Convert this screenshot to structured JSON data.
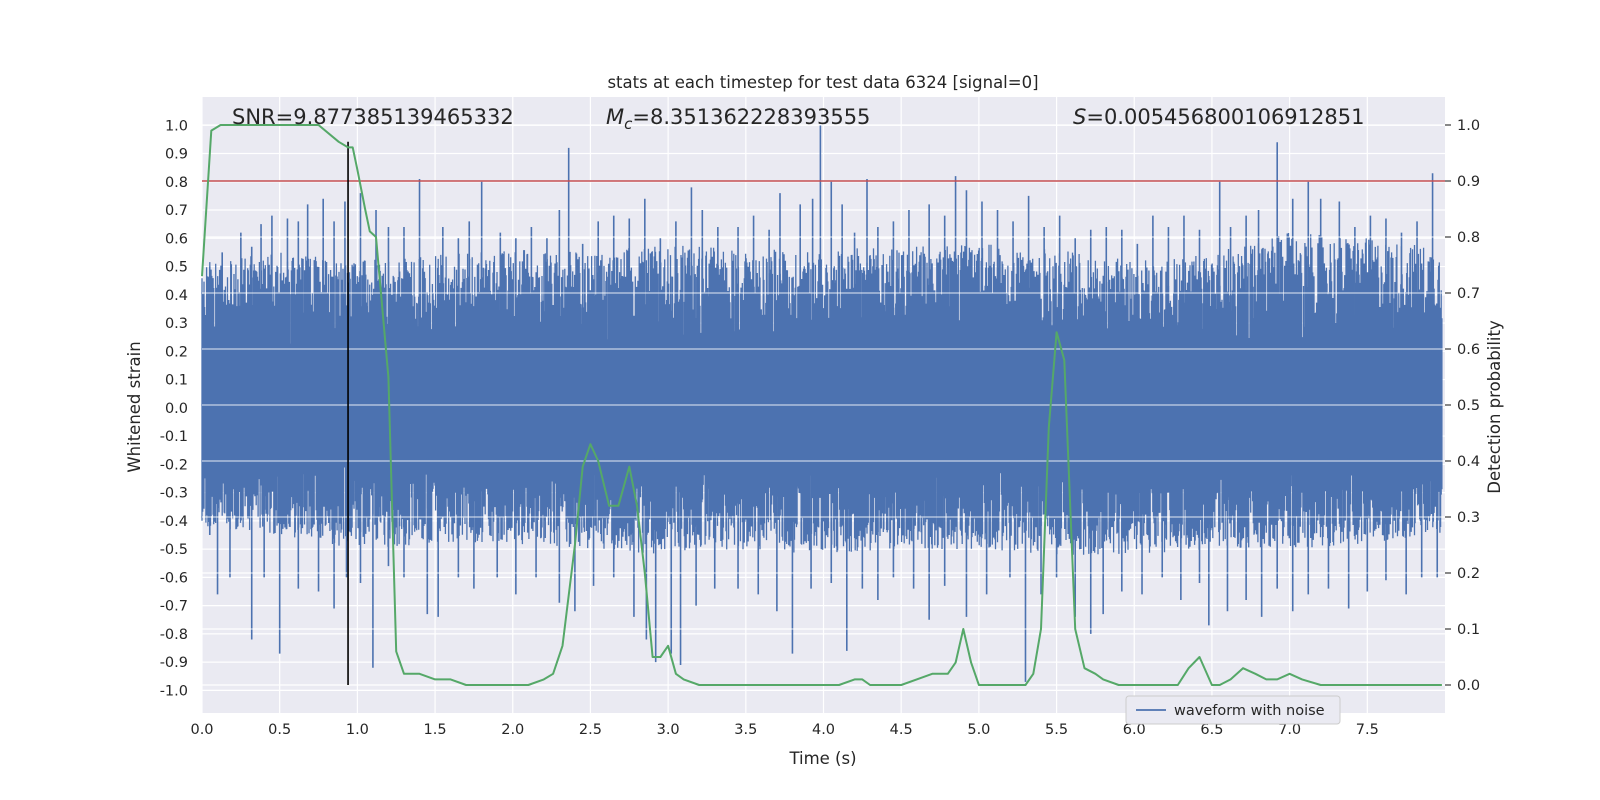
{
  "chart_data": {
    "type": "line",
    "title": "stats at each timestep for test data 6324 [signal=0]",
    "xlabel": "Time (s)",
    "ylabel": "Whitened strain",
    "ylabel_right": "Detection probability",
    "xlim": [
      0.0,
      8.0
    ],
    "ylim": [
      -1.08,
      1.1
    ],
    "ylim_right": [
      -0.05,
      1.05
    ],
    "x_ticks": [
      "0.0",
      "0.5",
      "1.0",
      "1.5",
      "2.0",
      "2.5",
      "3.0",
      "3.5",
      "4.0",
      "4.5",
      "5.0",
      "5.5",
      "6.0",
      "6.5",
      "7.0",
      "7.5"
    ],
    "x_tick_values": [
      0.0,
      0.5,
      1.0,
      1.5,
      2.0,
      2.5,
      3.0,
      3.5,
      4.0,
      4.5,
      5.0,
      5.5,
      6.0,
      6.5,
      7.0,
      7.5
    ],
    "y_ticks": [
      "-1.0",
      "-0.9",
      "-0.8",
      "-0.7",
      "-0.6",
      "-0.5",
      "-0.4",
      "-0.3",
      "-0.2",
      "-0.1",
      "0.0",
      "0.1",
      "0.2",
      "0.3",
      "0.4",
      "0.5",
      "0.6",
      "0.7",
      "0.8",
      "0.9",
      "1.0"
    ],
    "y_tick_values": [
      -1.0,
      -0.9,
      -0.8,
      -0.7,
      -0.6,
      -0.5,
      -0.4,
      -0.3,
      -0.2,
      -0.1,
      0.0,
      0.1,
      0.2,
      0.3,
      0.4,
      0.5,
      0.6,
      0.7,
      0.8,
      0.9,
      1.0
    ],
    "y_right_ticks": [
      "0.0",
      "0.1",
      "0.2",
      "0.3",
      "0.4",
      "0.5",
      "0.6",
      "0.7",
      "0.8",
      "0.9",
      "1.0"
    ],
    "y_right_tick_values": [
      0.0,
      0.1,
      0.2,
      0.3,
      0.4,
      0.5,
      0.6,
      0.7,
      0.8,
      0.9,
      1.0
    ],
    "grid": true,
    "legend": {
      "position": "lower-right",
      "entries": [
        "waveform with noise"
      ]
    },
    "annotations": {
      "snr": "SNR=9.877385139465332",
      "mc_symbol": "M",
      "mc_sub": "c",
      "mc_value": "=8.351362228393555",
      "s_symbol": "S",
      "s_value": "=0.005456800106912851"
    },
    "threshold_line": {
      "y_right": 0.9,
      "color": "#c44e52"
    },
    "vertical_marker": {
      "x": 0.94,
      "y_right_range": [
        0.0,
        0.97
      ],
      "color": "#000000"
    },
    "colors": {
      "waveform": "#4c72b0",
      "probability": "#55a868",
      "plot_background": "#eaeaf2",
      "grid": "#ffffff"
    },
    "series": [
      {
        "name": "waveform with noise",
        "axis": "left",
        "envelope": {
          "x": [
            0.0,
            0.5,
            1.0,
            1.5,
            2.0,
            2.5,
            3.0,
            3.5,
            4.0,
            4.5,
            5.0,
            5.5,
            6.0,
            6.5,
            7.0,
            7.5,
            7.98
          ],
          "upper": [
            0.52,
            0.55,
            0.52,
            0.54,
            0.56,
            0.55,
            0.58,
            0.56,
            0.56,
            0.57,
            0.58,
            0.56,
            0.52,
            0.55,
            0.62,
            0.6,
            0.57
          ],
          "lower": [
            -0.42,
            -0.45,
            -0.5,
            -0.48,
            -0.48,
            -0.5,
            -0.52,
            -0.5,
            -0.52,
            -0.5,
            -0.5,
            -0.52,
            -0.52,
            -0.5,
            -0.5,
            -0.48,
            -0.45
          ],
          "core": [
            0.2,
            -0.18
          ]
        },
        "spikes": [
          [
            0.05,
            0.5
          ],
          [
            0.13,
            0.55
          ],
          [
            0.25,
            0.62
          ],
          [
            0.32,
            0.57
          ],
          [
            0.38,
            0.65
          ],
          [
            0.45,
            0.68
          ],
          [
            0.55,
            0.67
          ],
          [
            0.62,
            0.66
          ],
          [
            0.68,
            0.72
          ],
          [
            0.78,
            0.74
          ],
          [
            0.85,
            0.66
          ],
          [
            0.92,
            0.73
          ],
          [
            1.02,
            0.76
          ],
          [
            1.12,
            0.7
          ],
          [
            1.2,
            0.64
          ],
          [
            1.3,
            0.64
          ],
          [
            1.4,
            0.81
          ],
          [
            1.55,
            0.64
          ],
          [
            1.65,
            0.6
          ],
          [
            1.72,
            0.66
          ],
          [
            1.8,
            0.8
          ],
          [
            1.92,
            0.62
          ],
          [
            2.02,
            0.6
          ],
          [
            2.12,
            0.64
          ],
          [
            2.22,
            0.6
          ],
          [
            2.3,
            0.7
          ],
          [
            2.36,
            0.92
          ],
          [
            2.45,
            0.58
          ],
          [
            2.55,
            0.66
          ],
          [
            2.65,
            0.68
          ],
          [
            2.75,
            0.67
          ],
          [
            2.85,
            0.74
          ],
          [
            2.95,
            0.6
          ],
          [
            3.05,
            0.66
          ],
          [
            3.15,
            0.78
          ],
          [
            3.22,
            0.7
          ],
          [
            3.32,
            0.64
          ],
          [
            3.45,
            0.64
          ],
          [
            3.55,
            0.68
          ],
          [
            3.65,
            0.63
          ],
          [
            3.72,
            0.76
          ],
          [
            3.85,
            0.72
          ],
          [
            3.93,
            0.74
          ],
          [
            3.98,
            1.0
          ],
          [
            4.05,
            0.8
          ],
          [
            4.12,
            0.72
          ],
          [
            4.2,
            0.62
          ],
          [
            4.28,
            0.81
          ],
          [
            4.35,
            0.64
          ],
          [
            4.45,
            0.66
          ],
          [
            4.55,
            0.7
          ],
          [
            4.68,
            0.72
          ],
          [
            4.78,
            0.68
          ],
          [
            4.85,
            0.82
          ],
          [
            4.92,
            0.77
          ],
          [
            5.02,
            0.73
          ],
          [
            5.12,
            0.7
          ],
          [
            5.22,
            0.66
          ],
          [
            5.32,
            0.75
          ],
          [
            5.42,
            0.64
          ],
          [
            5.52,
            0.68
          ],
          [
            5.62,
            0.6
          ],
          [
            5.72,
            0.63
          ],
          [
            5.82,
            0.64
          ],
          [
            5.92,
            0.63
          ],
          [
            6.02,
            0.58
          ],
          [
            6.12,
            0.68
          ],
          [
            6.22,
            0.64
          ],
          [
            6.32,
            0.68
          ],
          [
            6.42,
            0.63
          ],
          [
            6.55,
            0.8
          ],
          [
            6.62,
            0.64
          ],
          [
            6.72,
            0.68
          ],
          [
            6.8,
            0.7
          ],
          [
            6.92,
            0.94
          ],
          [
            7.02,
            0.74
          ],
          [
            7.12,
            0.8
          ],
          [
            7.2,
            0.74
          ],
          [
            7.32,
            0.73
          ],
          [
            7.42,
            0.64
          ],
          [
            7.52,
            0.68
          ],
          [
            7.62,
            0.67
          ],
          [
            7.72,
            0.62
          ],
          [
            7.82,
            0.66
          ],
          [
            7.92,
            0.83
          ],
          [
            0.05,
            -0.45
          ],
          [
            0.1,
            -0.66
          ],
          [
            0.18,
            -0.6
          ],
          [
            0.32,
            -0.82
          ],
          [
            0.4,
            -0.6
          ],
          [
            0.5,
            -0.87
          ],
          [
            0.62,
            -0.64
          ],
          [
            0.75,
            -0.65
          ],
          [
            0.85,
            -0.71
          ],
          [
            0.93,
            -0.6
          ],
          [
            1.02,
            -0.62
          ],
          [
            1.1,
            -0.92
          ],
          [
            1.2,
            -0.56
          ],
          [
            1.3,
            -0.6
          ],
          [
            1.45,
            -0.73
          ],
          [
            1.52,
            -0.74
          ],
          [
            1.65,
            -0.6
          ],
          [
            1.75,
            -0.64
          ],
          [
            1.9,
            -0.6
          ],
          [
            2.02,
            -0.66
          ],
          [
            2.15,
            -0.6
          ],
          [
            2.3,
            -0.69
          ],
          [
            2.4,
            -0.72
          ],
          [
            2.52,
            -0.63
          ],
          [
            2.65,
            -0.6
          ],
          [
            2.78,
            -0.74
          ],
          [
            2.86,
            -0.82
          ],
          [
            2.92,
            -0.9
          ],
          [
            3.02,
            -0.87
          ],
          [
            3.08,
            -0.91
          ],
          [
            3.18,
            -0.7
          ],
          [
            3.3,
            -0.64
          ],
          [
            3.45,
            -0.64
          ],
          [
            3.58,
            -0.66
          ],
          [
            3.7,
            -0.72
          ],
          [
            3.8,
            -0.87
          ],
          [
            3.92,
            -0.64
          ],
          [
            4.05,
            -0.62
          ],
          [
            4.15,
            -0.86
          ],
          [
            4.25,
            -0.64
          ],
          [
            4.35,
            -0.68
          ],
          [
            4.45,
            -0.6
          ],
          [
            4.58,
            -0.64
          ],
          [
            4.68,
            -0.75
          ],
          [
            4.78,
            -0.63
          ],
          [
            4.92,
            -0.74
          ],
          [
            5.05,
            -0.66
          ],
          [
            5.2,
            -0.6
          ],
          [
            5.3,
            -0.97
          ],
          [
            5.4,
            -0.66
          ],
          [
            5.5,
            -0.6
          ],
          [
            5.62,
            -0.74
          ],
          [
            5.72,
            -0.8
          ],
          [
            5.8,
            -0.73
          ],
          [
            5.92,
            -0.65
          ],
          [
            6.05,
            -0.66
          ],
          [
            6.18,
            -0.6
          ],
          [
            6.3,
            -0.68
          ],
          [
            6.42,
            -0.62
          ],
          [
            6.48,
            -0.77
          ],
          [
            6.6,
            -0.72
          ],
          [
            6.72,
            -0.68
          ],
          [
            6.82,
            -0.74
          ],
          [
            6.92,
            -0.64
          ],
          [
            7.02,
            -0.72
          ],
          [
            7.12,
            -0.66
          ],
          [
            7.25,
            -0.64
          ],
          [
            7.38,
            -0.71
          ],
          [
            7.5,
            -0.65
          ],
          [
            7.62,
            -0.61
          ],
          [
            7.75,
            -0.66
          ],
          [
            7.85,
            -0.6
          ],
          [
            7.95,
            -0.6
          ]
        ]
      },
      {
        "name": "",
        "axis": "right",
        "x": [
          0.0,
          0.06,
          0.12,
          0.3,
          0.5,
          0.75,
          0.88,
          0.94,
          0.97,
          1.0,
          1.05,
          1.08,
          1.12,
          1.2,
          1.25,
          1.3,
          1.4,
          1.5,
          1.6,
          1.7,
          1.8,
          1.9,
          2.0,
          2.1,
          2.2,
          2.26,
          2.32,
          2.4,
          2.45,
          2.5,
          2.55,
          2.62,
          2.68,
          2.75,
          2.8,
          2.85,
          2.9,
          2.95,
          3.0,
          3.05,
          3.1,
          3.2,
          3.3,
          3.4,
          3.5,
          3.6,
          3.7,
          3.8,
          3.9,
          4.0,
          4.1,
          4.2,
          4.25,
          4.3,
          4.4,
          4.5,
          4.6,
          4.7,
          4.8,
          4.85,
          4.9,
          4.95,
          5.0,
          5.1,
          5.2,
          5.3,
          5.35,
          5.4,
          5.45,
          5.5,
          5.55,
          5.62,
          5.68,
          5.75,
          5.8,
          5.9,
          6.0,
          6.1,
          6.2,
          6.28,
          6.35,
          6.42,
          6.5,
          6.55,
          6.62,
          6.7,
          6.78,
          6.85,
          6.92,
          7.0,
          7.08,
          7.2,
          7.3,
          7.5,
          7.98
        ],
        "y": [
          0.73,
          0.99,
          1.0,
          1.0,
          1.0,
          1.0,
          0.97,
          0.96,
          0.96,
          0.92,
          0.85,
          0.81,
          0.8,
          0.55,
          0.06,
          0.02,
          0.02,
          0.01,
          0.01,
          0.0,
          0.0,
          0.0,
          0.0,
          0.0,
          0.01,
          0.02,
          0.07,
          0.25,
          0.39,
          0.43,
          0.4,
          0.32,
          0.32,
          0.39,
          0.32,
          0.2,
          0.05,
          0.05,
          0.07,
          0.02,
          0.01,
          0.0,
          0.0,
          0.0,
          0.0,
          0.0,
          0.0,
          0.0,
          0.0,
          0.0,
          0.0,
          0.01,
          0.01,
          0.0,
          0.0,
          0.0,
          0.01,
          0.02,
          0.02,
          0.04,
          0.1,
          0.04,
          0.0,
          0.0,
          0.0,
          0.0,
          0.02,
          0.1,
          0.46,
          0.63,
          0.58,
          0.1,
          0.03,
          0.02,
          0.01,
          0.0,
          0.0,
          0.0,
          0.0,
          0.0,
          0.03,
          0.05,
          0.0,
          0.0,
          0.01,
          0.03,
          0.02,
          0.01,
          0.01,
          0.02,
          0.01,
          0.0,
          0.0,
          0.0,
          0.0
        ]
      }
    ]
  }
}
